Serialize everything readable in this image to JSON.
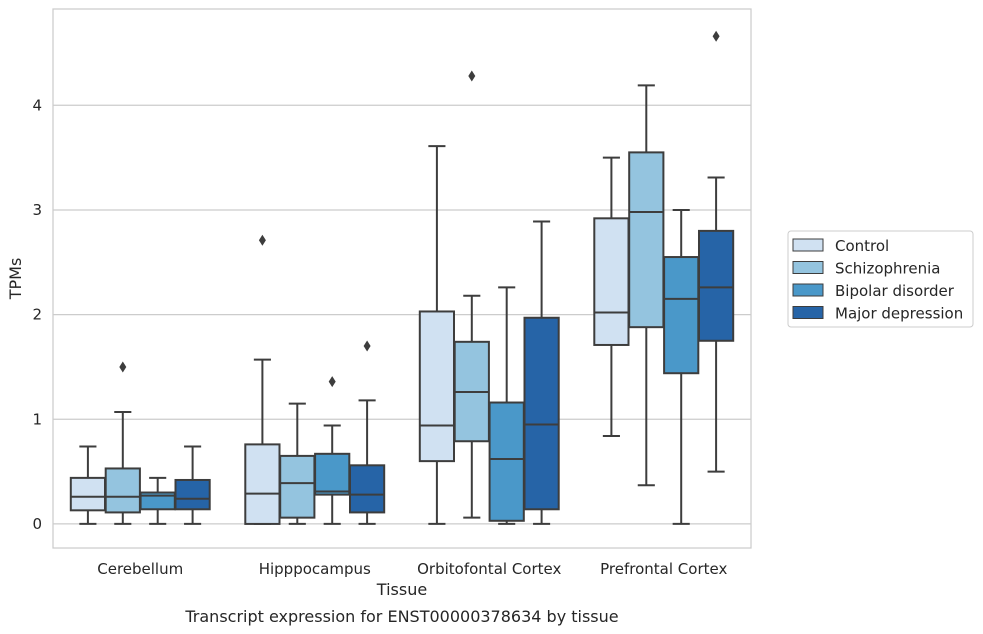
{
  "caption": "Transcript expression for ENST00000378634 by tissue",
  "chart_data": {
    "type": "box",
    "xlabel": "Tissue",
    "ylabel": "TPMs",
    "ylim": [
      -0.23,
      4.92
    ],
    "yticks": [
      0,
      1,
      2,
      3,
      4
    ],
    "grid": "horizontal",
    "legend_position": "right",
    "categories": [
      "Cerebellum",
      "Hipppocampus",
      "Orbitofontal Cortex",
      "Prefrontal Cortex"
    ],
    "series": [
      {
        "name": "Control",
        "color": "#d0e1f2",
        "boxes": [
          {
            "whisker_low": 0.0,
            "q1": 0.13,
            "median": 0.26,
            "q3": 0.44,
            "whisker_high": 0.74,
            "outliers": []
          },
          {
            "whisker_low": 0.0,
            "q1": 0.0,
            "median": 0.29,
            "q3": 0.76,
            "whisker_high": 1.57,
            "outliers": [
              2.71
            ]
          },
          {
            "whisker_low": 0.0,
            "q1": 0.6,
            "median": 0.94,
            "q3": 2.03,
            "whisker_high": 3.61,
            "outliers": []
          },
          {
            "whisker_low": 0.84,
            "q1": 1.71,
            "median": 2.02,
            "q3": 2.92,
            "whisker_high": 3.5,
            "outliers": []
          }
        ]
      },
      {
        "name": "Schizophrenia",
        "color": "#94c4df",
        "boxes": [
          {
            "whisker_low": 0.0,
            "q1": 0.11,
            "median": 0.26,
            "q3": 0.53,
            "whisker_high": 1.07,
            "outliers": [
              1.5
            ]
          },
          {
            "whisker_low": 0.0,
            "q1": 0.06,
            "median": 0.39,
            "q3": 0.65,
            "whisker_high": 1.15,
            "outliers": []
          },
          {
            "whisker_low": 0.06,
            "q1": 0.79,
            "median": 1.26,
            "q3": 1.74,
            "whisker_high": 2.18,
            "outliers": [
              4.28
            ]
          },
          {
            "whisker_low": 0.37,
            "q1": 1.88,
            "median": 2.98,
            "q3": 3.55,
            "whisker_high": 4.19,
            "outliers": []
          }
        ]
      },
      {
        "name": "Bipolar disorder",
        "color": "#4a98c9",
        "boxes": [
          {
            "whisker_low": 0.0,
            "q1": 0.14,
            "median": 0.27,
            "q3": 0.3,
            "whisker_high": 0.44,
            "outliers": []
          },
          {
            "whisker_low": 0.0,
            "q1": 0.28,
            "median": 0.31,
            "q3": 0.67,
            "whisker_high": 0.94,
            "outliers": [
              1.36
            ]
          },
          {
            "whisker_low": 0.0,
            "q1": 0.03,
            "median": 0.62,
            "q3": 1.16,
            "whisker_high": 2.26,
            "outliers": []
          },
          {
            "whisker_low": 0.0,
            "q1": 1.44,
            "median": 2.15,
            "q3": 2.55,
            "whisker_high": 3.0,
            "outliers": []
          }
        ]
      },
      {
        "name": "Major depression",
        "color": "#2664a7",
        "boxes": [
          {
            "whisker_low": 0.0,
            "q1": 0.14,
            "median": 0.24,
            "q3": 0.42,
            "whisker_high": 0.74,
            "outliers": []
          },
          {
            "whisker_low": 0.0,
            "q1": 0.11,
            "median": 0.28,
            "q3": 0.56,
            "whisker_high": 1.18,
            "outliers": [
              1.7
            ]
          },
          {
            "whisker_low": 0.0,
            "q1": 0.14,
            "median": 0.95,
            "q3": 1.97,
            "whisker_high": 2.89,
            "outliers": []
          },
          {
            "whisker_low": 0.5,
            "q1": 1.75,
            "median": 2.26,
            "q3": 2.8,
            "whisker_high": 3.31,
            "outliers": [
              4.66
            ]
          }
        ]
      }
    ]
  }
}
